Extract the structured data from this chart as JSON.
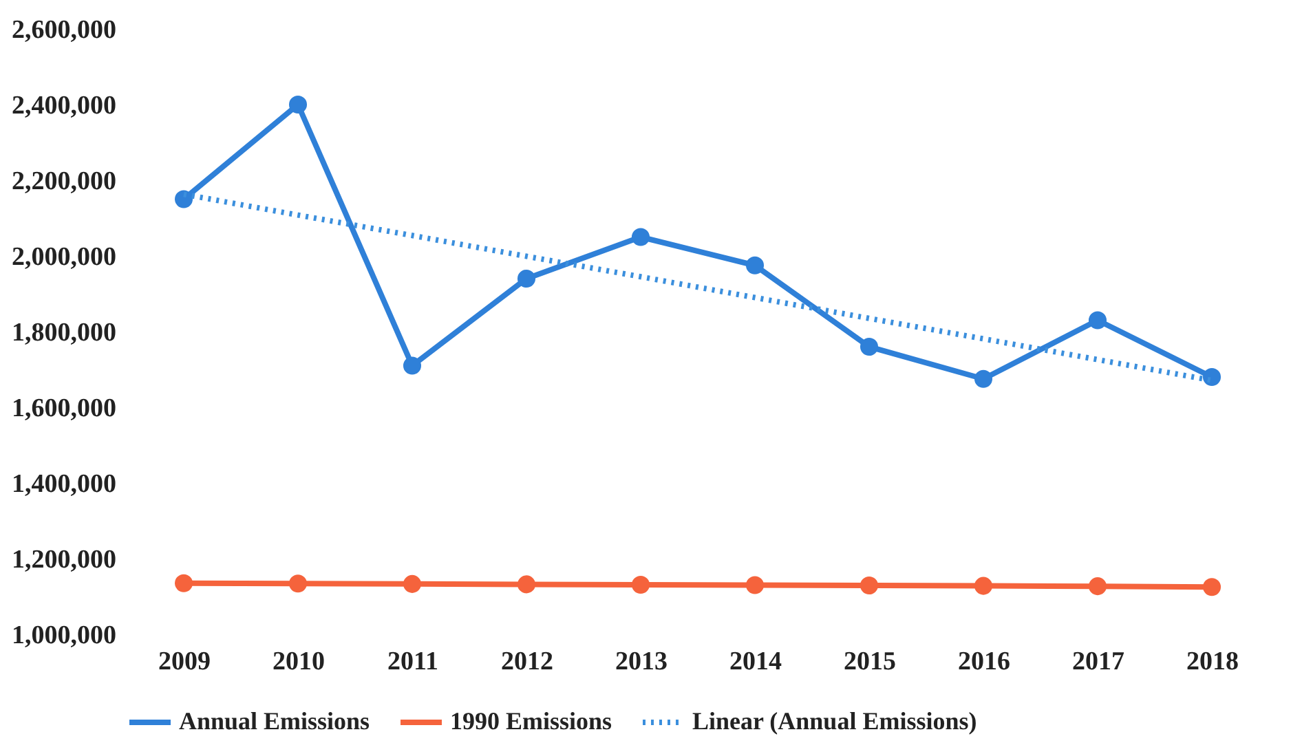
{
  "chart_data": {
    "type": "line",
    "categories": [
      "2009",
      "2010",
      "2011",
      "2012",
      "2013",
      "2014",
      "2015",
      "2016",
      "2017",
      "2018"
    ],
    "series": [
      {
        "name": "Annual Emissions",
        "color": "#2f80d8",
        "values": [
          2150000,
          2400000,
          1710000,
          1940000,
          2050000,
          1975000,
          1760000,
          1675000,
          1830000,
          1680000
        ]
      },
      {
        "name": "1990 Emissions",
        "color": "#f5633c",
        "values": [
          1135000,
          1134000,
          1133000,
          1132000,
          1131000,
          1130000,
          1129000,
          1128000,
          1127000,
          1125000
        ]
      },
      {
        "name": "Linear (Annual Emissions)",
        "color": "#3b8fdd",
        "marker": "none",
        "line_style": "dotted",
        "values": [
          2163000,
          2108000,
          2054000,
          1999000,
          1945000,
          1890000,
          1835000,
          1781000,
          1726000,
          1671000
        ]
      }
    ],
    "ylim": [
      1000000,
      2600000
    ],
    "yticks": [
      {
        "value": 1000000,
        "label": "1,000,000"
      },
      {
        "value": 1200000,
        "label": "1,200,000"
      },
      {
        "value": 1400000,
        "label": "1,400,000"
      },
      {
        "value": 1600000,
        "label": "1,600,000"
      },
      {
        "value": 1800000,
        "label": "1,800,000"
      },
      {
        "value": 2000000,
        "label": "2,000,000"
      },
      {
        "value": 2200000,
        "label": "2,200,000"
      },
      {
        "value": 2400000,
        "label": "2,400,000"
      },
      {
        "value": 2600000,
        "label": "2,600,000"
      }
    ],
    "grid": false,
    "legend": "bottom",
    "marker": "circle",
    "line_style": "solid"
  }
}
